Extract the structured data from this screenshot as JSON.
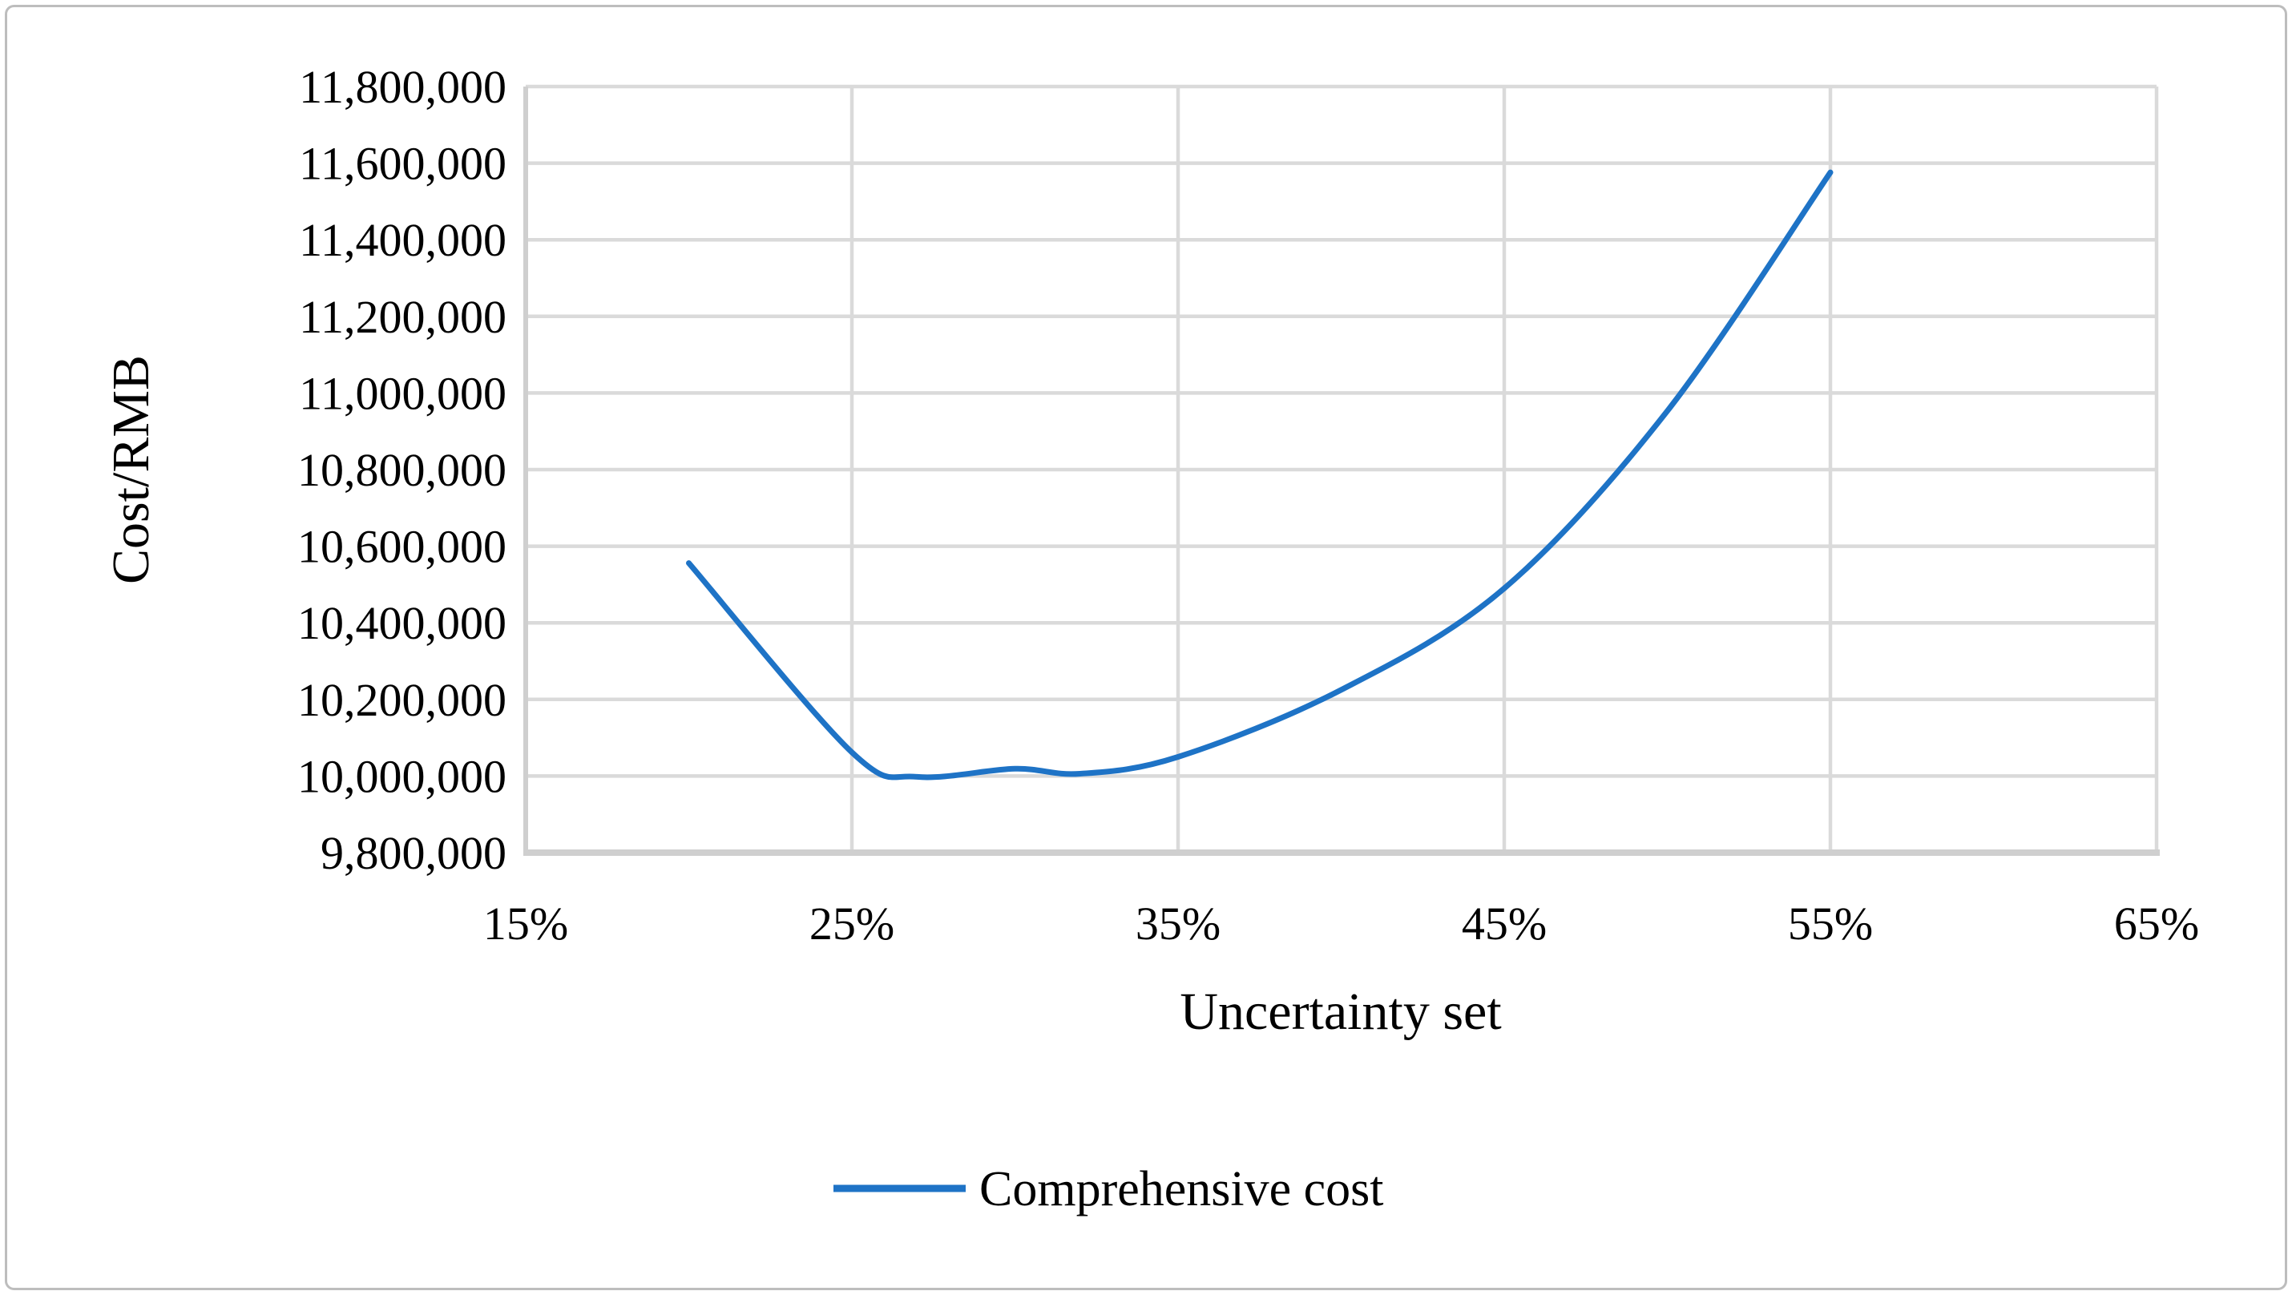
{
  "figure": {
    "background": "#FFFFFF",
    "border_color": "#BDBDBD"
  },
  "chart_data": {
    "type": "line",
    "title": "",
    "xlabel": "Uncertainty set",
    "ylabel": "Cost/RMB",
    "grid": true,
    "legend": {
      "position": "bottom",
      "entries": [
        "Comprehensive cost"
      ]
    },
    "x_axis": {
      "min": 15,
      "max": 65,
      "tick_step": 10,
      "tick_labels": [
        "15%",
        "25%",
        "35%",
        "45%",
        "55%",
        "65%"
      ]
    },
    "y_axis": {
      "min": 9800000,
      "max": 11800000,
      "tick_step": 200000,
      "tick_labels": [
        "9,800,000",
        "10,000,000",
        "10,200,000",
        "10,400,000",
        "10,600,000",
        "10,800,000",
        "11,000,000",
        "11,200,000",
        "11,400,000",
        "11,600,000",
        "11,800,000"
      ]
    },
    "series": [
      {
        "name": "Comprehensive cost",
        "color": "#1E73C6",
        "x_percent": [
          20,
          25,
          27,
          30,
          32,
          35,
          40,
          45,
          50,
          55
        ],
        "y_cost_rmb": [
          10556000,
          10062000,
          9998000,
          10019000,
          10006000,
          10050000,
          10225000,
          10490000,
          10953000,
          11576000
        ]
      }
    ],
    "colors": {
      "gridline": "#DADADA",
      "axis_line": "#CFCFCF",
      "text": "#000000"
    }
  }
}
